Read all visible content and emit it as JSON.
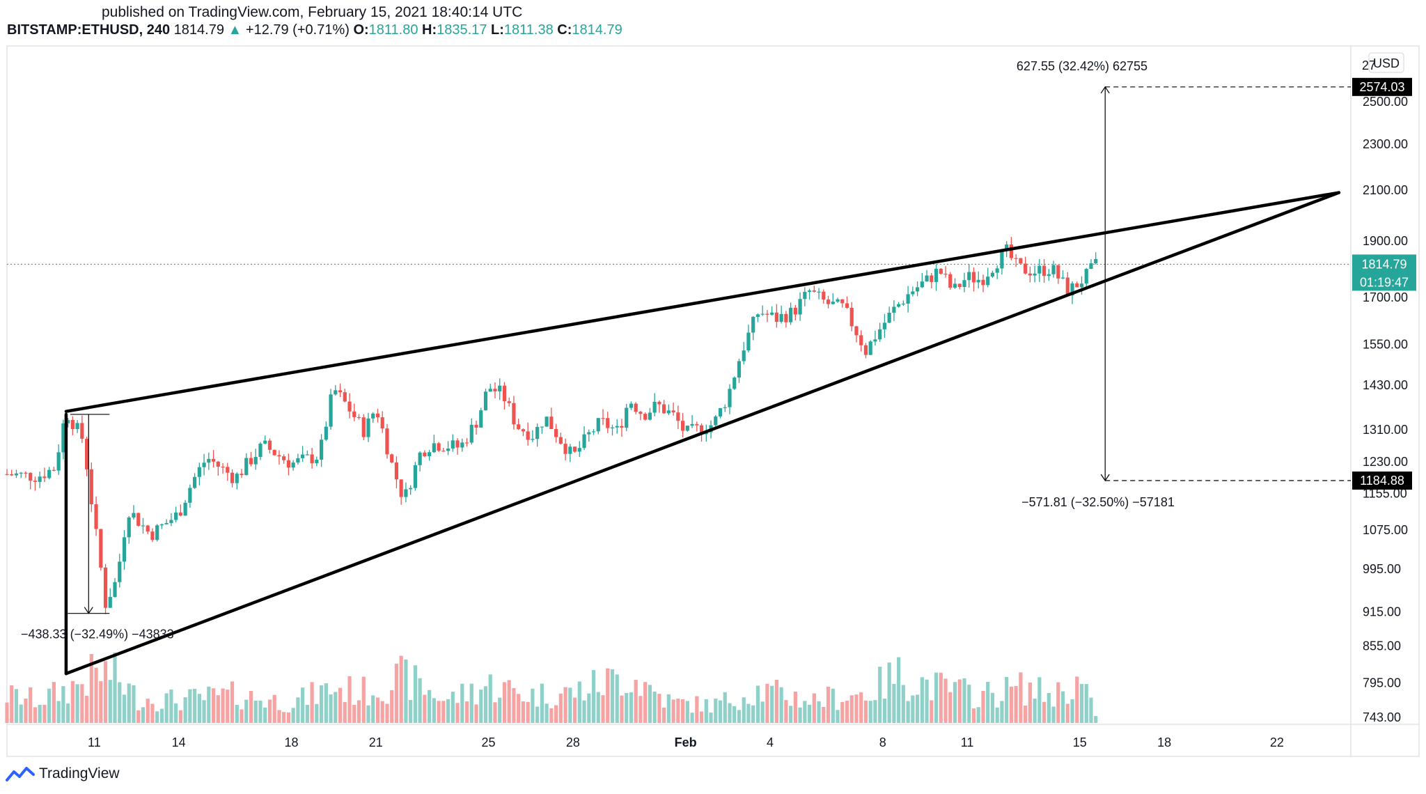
{
  "header": {
    "published": "published on TradingView.com, February 15, 2021 18:40:14 UTC",
    "symbol": "BITSTAMP:ETHUSD, 240",
    "last": "1814.79",
    "arrow": "▲",
    "change": "+12.79 (+0.71%)",
    "open_label": "O:",
    "open": "1811.80",
    "high_label": "H:",
    "high": "1835.17",
    "low_label": "L:",
    "low": "1811.38",
    "close_label": "C:",
    "close": "1814.79"
  },
  "price_axis": {
    "currency": "USD",
    "top_partial": "27",
    "last_price": "1814.79",
    "countdown": "01:19:47",
    "target_up": "2574.03",
    "target_down": "1184.88"
  },
  "measures": {
    "up": "627.55 (32.42%) 62755",
    "down": "−571.81 (−32.50%) −57181",
    "pole": "−438.33 (−32.49%) −43833"
  },
  "footer": {
    "brand": "TradingView",
    "logo_icon": "tradingview-logo-icon"
  },
  "colors": {
    "up": "#26a69a",
    "down": "#ef5350",
    "vol_up": "#8fd1c9",
    "vol_down": "#f5a3a3",
    "last_line": "#26a69a"
  },
  "chart_data": {
    "type": "candlestick",
    "title": "",
    "pair": "BITSTAMP:ETHUSD",
    "interval": "240",
    "y_scale": "log",
    "y_ticks": [
      743,
      795,
      855,
      915,
      995,
      1075,
      1155,
      1230,
      1310,
      1430,
      1550,
      1700,
      1900,
      2100,
      2300,
      2500
    ],
    "y_tick_labels": [
      "743.00",
      "795.00",
      "855.00",
      "915.00",
      "995.00",
      "1075.00",
      "1155.00",
      "1230.00",
      "1310.00",
      "1430.00",
      "1550.00",
      "1700.00",
      "1900.00",
      "2100.00",
      "2300.00",
      "2500.00"
    ],
    "x_ticks": [
      {
        "label": "11",
        "day": 11
      },
      {
        "label": "14",
        "day": 14
      },
      {
        "label": "18",
        "day": 18
      },
      {
        "label": "21",
        "day": 21
      },
      {
        "label": "25",
        "day": 25
      },
      {
        "label": "28",
        "day": 28
      },
      {
        "label": "Feb",
        "day": 32,
        "bold": true
      },
      {
        "label": "4",
        "day": 35
      },
      {
        "label": "8",
        "day": 39
      },
      {
        "label": "11",
        "day": 42
      },
      {
        "label": "15",
        "day": 46
      },
      {
        "label": "18",
        "day": 49
      },
      {
        "label": "22",
        "day": 53
      }
    ],
    "x_unit": "day (Jan 1 = 1, Feb 1 = 32)",
    "x_range": [
      7.9,
      55.5
    ],
    "close_path": [
      [
        7.9,
        1200
      ],
      [
        9.0,
        1195
      ],
      [
        9.6,
        1215
      ],
      [
        10.0,
        1358
      ],
      [
        10.6,
        1285
      ],
      [
        11.0,
        1090
      ],
      [
        11.4,
        930
      ],
      [
        11.8,
        975
      ],
      [
        12.2,
        1120
      ],
      [
        13.0,
        1065
      ],
      [
        14.0,
        1110
      ],
      [
        14.5,
        1185
      ],
      [
        15.0,
        1240
      ],
      [
        16.0,
        1190
      ],
      [
        17.0,
        1270
      ],
      [
        18.0,
        1225
      ],
      [
        19.0,
        1245
      ],
      [
        19.5,
        1420
      ],
      [
        20.0,
        1370
      ],
      [
        20.6,
        1305
      ],
      [
        21.0,
        1370
      ],
      [
        21.6,
        1215
      ],
      [
        22.0,
        1140
      ],
      [
        22.6,
        1255
      ],
      [
        23.0,
        1275
      ],
      [
        24.0,
        1265
      ],
      [
        24.6,
        1335
      ],
      [
        25.0,
        1425
      ],
      [
        25.5,
        1405
      ],
      [
        26.0,
        1320
      ],
      [
        26.6,
        1295
      ],
      [
        27.0,
        1345
      ],
      [
        27.6,
        1280
      ],
      [
        28.0,
        1240
      ],
      [
        28.6,
        1300
      ],
      [
        29.0,
        1330
      ],
      [
        29.6,
        1305
      ],
      [
        30.0,
        1390
      ],
      [
        30.5,
        1350
      ],
      [
        31.0,
        1375
      ],
      [
        31.6,
        1345
      ],
      [
        32.0,
        1300
      ],
      [
        33.0,
        1325
      ],
      [
        33.5,
        1400
      ],
      [
        34.0,
        1530
      ],
      [
        34.6,
        1655
      ],
      [
        35.2,
        1630
      ],
      [
        35.8,
        1650
      ],
      [
        36.4,
        1720
      ],
      [
        37.0,
        1680
      ],
      [
        37.6,
        1665
      ],
      [
        38.0,
        1600
      ],
      [
        38.4,
        1530
      ],
      [
        38.8,
        1585
      ],
      [
        39.4,
        1660
      ],
      [
        40.0,
        1720
      ],
      [
        40.6,
        1760
      ],
      [
        41.0,
        1795
      ],
      [
        41.5,
        1720
      ],
      [
        42.0,
        1770
      ],
      [
        42.5,
        1760
      ],
      [
        43.0,
        1820
      ],
      [
        43.4,
        1860
      ],
      [
        43.8,
        1800
      ],
      [
        44.4,
        1790
      ],
      [
        45.0,
        1800
      ],
      [
        45.6,
        1720
      ],
      [
        46.2,
        1770
      ],
      [
        46.6,
        1815
      ]
    ],
    "last_price": 1814.79,
    "upper_trendline": [
      [
        10.0,
        1358
      ],
      [
        55.2,
        2090
      ]
    ],
    "lower_trendline": [
      [
        10.0,
        810
      ],
      [
        55.2,
        2090
      ]
    ],
    "pole": {
      "x": 10.0,
      "from": 1350,
      "to": 810
    },
    "pole_measure": {
      "x": 10.8,
      "from": 1350,
      "to": 912,
      "change": -438.33,
      "change_pct": -32.49
    },
    "target_measure": {
      "x": 46.9,
      "from": 1930,
      "up_to": 2574.03,
      "down_to": 1184.88,
      "up_change": 627.55,
      "up_pct": 32.42,
      "down_change": -571.81,
      "down_pct": -32.5
    },
    "volume_shape": [
      [
        7.9,
        0.55
      ],
      [
        9.0,
        0.45
      ],
      [
        10.0,
        0.65
      ],
      [
        11.0,
        0.95
      ],
      [
        11.6,
        1.0
      ],
      [
        12.5,
        0.5
      ],
      [
        14.0,
        0.45
      ],
      [
        16.0,
        0.55
      ],
      [
        18.0,
        0.4
      ],
      [
        19.5,
        0.7
      ],
      [
        20.5,
        0.6
      ],
      [
        22.0,
        0.9
      ],
      [
        23.5,
        0.45
      ],
      [
        25.0,
        0.75
      ],
      [
        26.5,
        0.55
      ],
      [
        28.0,
        0.6
      ],
      [
        30.0,
        0.95
      ],
      [
        31.5,
        0.4
      ],
      [
        33.0,
        0.35
      ],
      [
        34.5,
        0.65
      ],
      [
        36.5,
        0.45
      ],
      [
        38.5,
        0.6
      ],
      [
        39.5,
        0.95
      ],
      [
        41.0,
        0.7
      ],
      [
        42.5,
        0.55
      ],
      [
        44.0,
        0.7
      ],
      [
        45.0,
        0.55
      ],
      [
        46.0,
        0.8
      ],
      [
        46.6,
        0.15
      ]
    ]
  }
}
